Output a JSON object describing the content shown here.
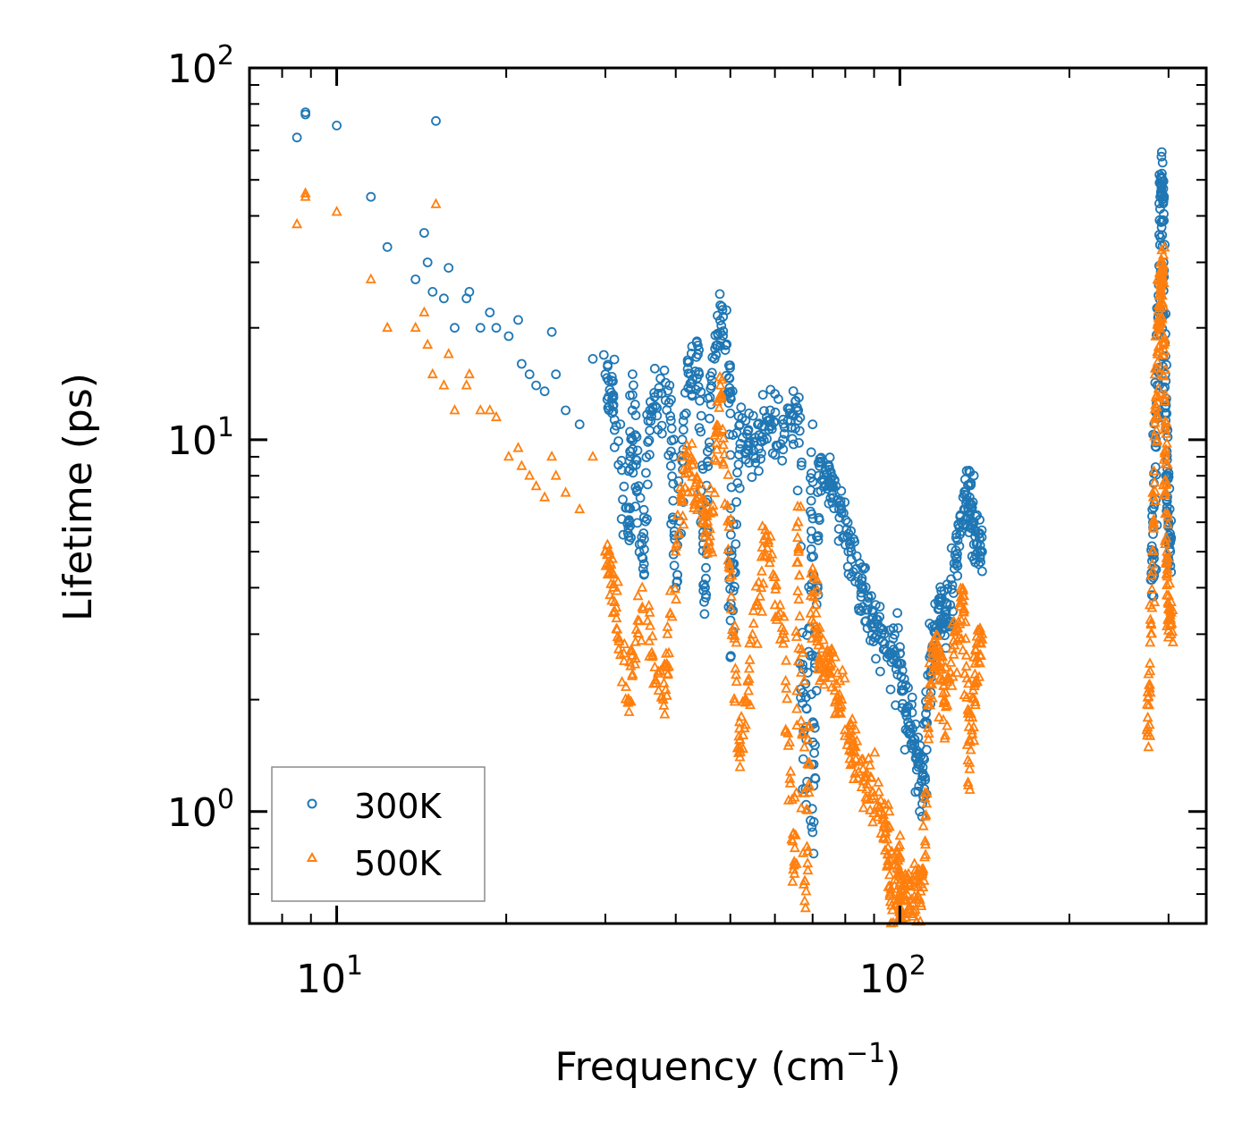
{
  "chart_data": {
    "type": "scatter",
    "title": "",
    "xlabel": "Frequency (cm",
    "xlabel_sup": "−1",
    "xlabel_suffix": ")",
    "ylabel": "Lifetime (ps)",
    "xscale": "log",
    "yscale": "log",
    "xlim": [
      7,
      350
    ],
    "ylim": [
      0.5,
      100
    ],
    "x_ticks": [
      {
        "base": "10",
        "exp": "1",
        "value": 10
      },
      {
        "base": "10",
        "exp": "2",
        "value": 100
      }
    ],
    "y_ticks": [
      {
        "base": "10",
        "exp": "0",
        "value": 1
      },
      {
        "base": "10",
        "exp": "1",
        "value": 10
      },
      {
        "base": "10",
        "exp": "2",
        "value": 100
      }
    ],
    "legend": {
      "position": "lower-left"
    },
    "series": [
      {
        "name": "300K",
        "marker": "circle",
        "color": "#1f77b4",
        "anchors": [
          [
            8.5,
            65
          ],
          [
            8.8,
            75
          ],
          [
            8.8,
            76
          ],
          [
            10,
            70
          ],
          [
            11.5,
            45
          ],
          [
            12.3,
            33
          ],
          [
            13.8,
            27
          ],
          [
            14.3,
            36
          ],
          [
            14.5,
            30
          ],
          [
            14.8,
            25
          ],
          [
            15,
            72
          ],
          [
            15.5,
            24
          ],
          [
            15.8,
            29
          ],
          [
            16.2,
            20
          ],
          [
            17,
            24
          ],
          [
            17.2,
            25
          ],
          [
            18,
            20
          ],
          [
            18.7,
            22
          ],
          [
            19.2,
            20
          ],
          [
            20.2,
            19
          ],
          [
            21,
            21
          ],
          [
            21.3,
            16
          ],
          [
            22,
            15
          ],
          [
            22.6,
            14
          ],
          [
            23.4,
            13.5
          ],
          [
            24.1,
            19.5
          ],
          [
            24.5,
            15
          ],
          [
            25.5,
            12
          ],
          [
            27,
            11
          ],
          [
            28.5,
            16.5
          ],
          [
            30,
            15
          ],
          [
            31,
            13
          ],
          [
            33.5,
            12
          ],
          [
            36,
            12
          ],
          [
            39,
            14
          ],
          [
            42,
            15.5
          ],
          [
            44,
            15
          ],
          [
            46,
            13
          ],
          [
            48,
            23
          ],
          [
            50,
            13
          ],
          [
            52,
            11
          ],
          [
            55,
            9
          ],
          [
            58,
            11.5
          ],
          [
            62,
            10
          ],
          [
            66,
            12
          ],
          [
            70,
            11
          ],
          [
            72,
            8.5
          ],
          [
            75,
            7.5
          ],
          [
            78,
            6.5
          ],
          [
            82,
            5
          ],
          [
            86,
            4
          ],
          [
            90,
            3.2
          ],
          [
            95,
            2.6
          ],
          [
            100,
            2.5
          ],
          [
            103,
            1.9
          ],
          [
            107,
            1.4
          ],
          [
            110,
            1.1
          ],
          [
            113,
            2.6
          ],
          [
            117,
            3.5
          ],
          [
            120,
            3.2
          ],
          [
            125,
            4.5
          ],
          [
            130,
            6.5
          ],
          [
            133,
            7
          ],
          [
            136,
            5.5
          ],
          [
            140,
            5
          ],
          [
            68,
            1.15
          ],
          [
            70,
            0.88
          ],
          [
            33,
            5.5
          ],
          [
            35,
            4.5
          ],
          [
            40,
            4
          ],
          [
            45,
            3.4
          ],
          [
            50,
            2.6
          ],
          [
            280,
            4.2
          ],
          [
            282,
            5
          ],
          [
            285,
            10
          ],
          [
            288,
            20
          ],
          [
            290,
            45
          ],
          [
            292,
            52
          ],
          [
            294,
            30
          ],
          [
            296,
            15
          ],
          [
            298,
            8
          ],
          [
            300,
            6
          ],
          [
            302,
            5
          ]
        ]
      },
      {
        "name": "500K",
        "marker": "triangle",
        "color": "#ff7f0e",
        "anchors": [
          [
            8.5,
            38
          ],
          [
            8.8,
            46
          ],
          [
            8.8,
            45
          ],
          [
            10,
            41
          ],
          [
            11.5,
            27
          ],
          [
            12.3,
            20
          ],
          [
            13.8,
            20
          ],
          [
            14.3,
            22
          ],
          [
            14.5,
            18
          ],
          [
            14.8,
            15
          ],
          [
            15,
            43
          ],
          [
            15.5,
            14
          ],
          [
            15.8,
            17
          ],
          [
            16.2,
            12
          ],
          [
            17,
            14
          ],
          [
            17.2,
            15
          ],
          [
            18,
            12
          ],
          [
            18.7,
            12
          ],
          [
            19.2,
            11.5
          ],
          [
            20.2,
            9
          ],
          [
            21,
            9.5
          ],
          [
            21.3,
            8.5
          ],
          [
            22,
            8
          ],
          [
            22.6,
            7.5
          ],
          [
            23.4,
            7
          ],
          [
            24.1,
            9
          ],
          [
            24.5,
            8
          ],
          [
            25.5,
            7.2
          ],
          [
            27,
            6.5
          ],
          [
            28.5,
            9
          ],
          [
            30,
            5
          ],
          [
            31,
            4
          ],
          [
            33,
            2
          ],
          [
            35,
            3.5
          ],
          [
            38,
            2
          ],
          [
            40,
            5
          ],
          [
            42,
            9
          ],
          [
            44,
            7
          ],
          [
            46,
            5.5
          ],
          [
            48,
            14
          ],
          [
            50,
            4.5
          ],
          [
            52,
            1.4
          ],
          [
            55,
            3.2
          ],
          [
            58,
            5.5
          ],
          [
            62,
            3
          ],
          [
            66,
            6
          ],
          [
            70,
            4.5
          ],
          [
            72,
            2.5
          ],
          [
            75,
            2.6
          ],
          [
            78,
            2
          ],
          [
            82,
            1.5
          ],
          [
            86,
            1.3
          ],
          [
            90,
            1.1
          ],
          [
            95,
            0.9
          ],
          [
            100,
            0.75
          ],
          [
            103,
            0.6
          ],
          [
            107,
            0.58
          ],
          [
            110,
            0.7
          ],
          [
            113,
            2.2
          ],
          [
            117,
            2.8
          ],
          [
            120,
            2
          ],
          [
            125,
            2.8
          ],
          [
            130,
            3.8
          ],
          [
            133,
            1.3
          ],
          [
            136,
            2.5
          ],
          [
            140,
            3
          ],
          [
            65,
            0.68
          ],
          [
            68,
            0.55
          ],
          [
            96,
            0.6
          ],
          [
            100,
            0.52
          ],
          [
            275,
            1.6
          ],
          [
            278,
            2.5
          ],
          [
            282,
            6
          ],
          [
            285,
            13
          ],
          [
            288,
            20
          ],
          [
            290,
            27
          ],
          [
            292,
            30
          ],
          [
            294,
            18
          ],
          [
            296,
            9
          ],
          [
            298,
            5
          ],
          [
            300,
            3.5
          ],
          [
            304,
            3.2
          ]
        ]
      }
    ]
  }
}
